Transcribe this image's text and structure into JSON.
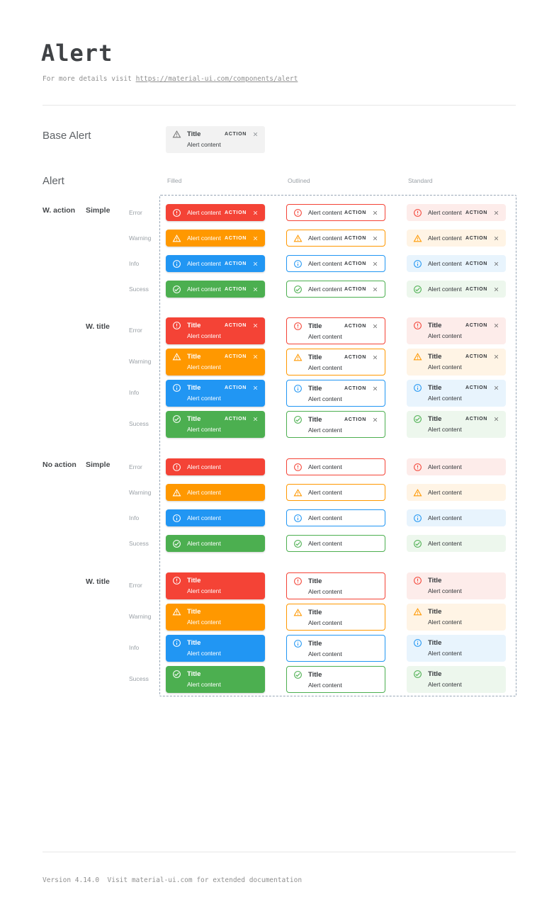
{
  "page": {
    "title": "Alert",
    "subtitle_prefix": "For more details visit ",
    "subtitle_link": "https://material-ui.com/components/alert",
    "footer": "Version 4.14.0  Visit material-ui.com for extended documentation"
  },
  "base_alert": {
    "section_label": "Base Alert",
    "title": "Title",
    "content": "Alert content",
    "action_label": "ACTION",
    "background": "#f2f2f2",
    "icon": "warning-triangle-icon"
  },
  "matrix": {
    "heading": "Alert",
    "columns": [
      {
        "id": "filled",
        "label": "Filled"
      },
      {
        "id": "outlined",
        "label": "Outlined"
      },
      {
        "id": "standard",
        "label": "Standard"
      }
    ],
    "row_groups": [
      {
        "action_label": "W. action",
        "variant_label": "Simple",
        "has_action": true,
        "has_title": false
      },
      {
        "action_label": "",
        "variant_label": "W. title",
        "has_action": true,
        "has_title": true
      },
      {
        "action_label": "No action",
        "variant_label": "Simple",
        "has_action": false,
        "has_title": false
      },
      {
        "action_label": "",
        "variant_label": "W. title",
        "has_action": false,
        "has_title": true
      }
    ],
    "severities": [
      {
        "id": "error",
        "label": "Error",
        "icon": "error-circle-icon",
        "main": "#f44336",
        "standard_bg": "#fdecea"
      },
      {
        "id": "warning",
        "label": "Warning",
        "icon": "warning-triangle-icon",
        "main": "#ff9800",
        "standard_bg": "#fff4e5"
      },
      {
        "id": "info",
        "label": "Info",
        "icon": "info-circle-icon",
        "main": "#2196f3",
        "standard_bg": "#e8f4fd"
      },
      {
        "id": "success",
        "label": "Sucess",
        "icon": "check-circle-icon",
        "main": "#4caf50",
        "standard_bg": "#edf7ed"
      }
    ],
    "alert_text": {
      "title": "Title",
      "content": "Alert content",
      "action": "ACTION"
    }
  },
  "colors": {
    "dashed_border": "#97a6b6",
    "filled_text": "#ffffff",
    "dark_text": "#33363a",
    "muted_label": "#9aa0a6",
    "close_gray": "#616161"
  }
}
